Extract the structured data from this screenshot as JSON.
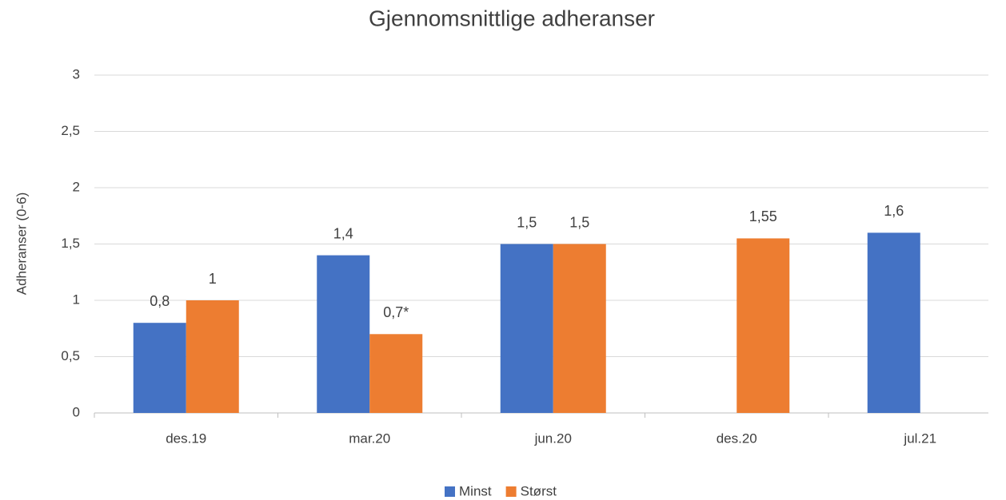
{
  "chart_data": {
    "type": "bar",
    "title": "Gjennomsnittlige adheranser",
    "y_label": "Adheranser (0-6)",
    "categories": [
      "des.19",
      "mar.20",
      "jun.20",
      "des.20",
      "jul.21"
    ],
    "series": [
      {
        "name": "Minst",
        "color": "#4472c4",
        "values": [
          0.8,
          1.4,
          1.5,
          null,
          1.6
        ],
        "value_labels": [
          "0,8",
          "1,4",
          "1,5",
          null,
          "1,6"
        ]
      },
      {
        "name": "Størst",
        "color": "#ed7d31",
        "values": [
          1,
          0.7,
          1.5,
          1.55,
          null
        ],
        "value_labels": [
          "1",
          "0,7*",
          "1,5",
          "1,55",
          null
        ]
      }
    ],
    "ylim": [
      0,
      3
    ],
    "yticks": [
      0,
      {
        "value": 0.5,
        "label": "0,5"
      },
      1,
      {
        "value": 1.5,
        "label": "1,5"
      },
      2,
      {
        "value": 2.5,
        "label": "2,5"
      },
      3
    ],
    "grid": true,
    "legend": "bottom"
  }
}
